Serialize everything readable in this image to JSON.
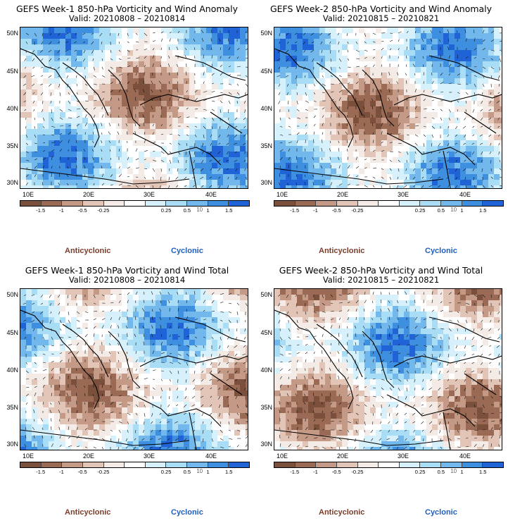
{
  "colors": {
    "scale": [
      "#7a4f3b",
      "#9a6a55",
      "#c49a86",
      "#e2c5b7",
      "#f5ebe6",
      "#ffffff",
      "#d6f1fb",
      "#a9dcf5",
      "#72b8ec",
      "#3f8fe0",
      "#1f63d6"
    ],
    "anticyclonic": "#7b3d2a",
    "cyclonic": "#1f5fbf",
    "coast": "#000000"
  },
  "legend": {
    "tick_labels": [
      "-1.5",
      "-1",
      "-0.5",
      "-0.25",
      "0.25",
      "0.5",
      "1",
      "1.5"
    ],
    "multiplier": "10",
    "anticyclonic_label": "Anticyclonic",
    "cyclonic_label": "Cyclonic"
  },
  "axes": {
    "lat_labels": [
      "50N",
      "45N",
      "40N",
      "35N",
      "30N"
    ],
    "lon_labels": [
      "10E",
      "20E",
      "30E",
      "40E"
    ]
  },
  "panels": [
    {
      "title": "GEFS Week-1 850-hPa Vorticity and Wind Anomaly",
      "valid": "Valid: 20210808 – 20210814",
      "seed": 11
    },
    {
      "title": "GEFS Week-2 850-hPa Vorticity and Wind Anomaly",
      "valid": "Valid: 20210815 – 20210821",
      "seed": 23
    },
    {
      "title": "GEFS Week-1 850-hPa Vorticity and Wind Total",
      "valid": "Valid: 20210808 – 20210814",
      "seed": 37
    },
    {
      "title": "GEFS Week-2 850-hPa Vorticity and Wind Total",
      "valid": "Valid: 20210815 – 20210821",
      "seed": 53
    }
  ]
}
